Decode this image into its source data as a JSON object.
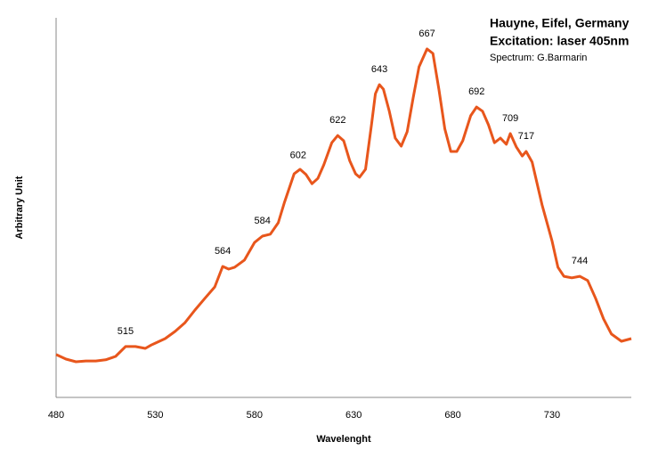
{
  "chart_data": {
    "type": "line",
    "title": "Hauyne, Eifel, Germany",
    "subtitle": "Excitation: laser 405nm",
    "credit": "Spectrum: G.Barmarin",
    "x_label": "Wavelenght",
    "y_label": "Arbitrary Unit",
    "xlim": [
      480,
      770
    ],
    "ylim": [
      0,
      100
    ],
    "xticks": [
      480,
      530,
      580,
      630,
      680,
      730
    ],
    "grid": false,
    "x": [
      480,
      485,
      490,
      495,
      500,
      505,
      510,
      515,
      520,
      525,
      528,
      530,
      535,
      540,
      545,
      550,
      555,
      560,
      564,
      567,
      570,
      575,
      580,
      584,
      588,
      592,
      595,
      600,
      603,
      606,
      609,
      612,
      615,
      619,
      622,
      625,
      628,
      631,
      633,
      636,
      639,
      641,
      643,
      645,
      648,
      651,
      654,
      657,
      660,
      663,
      667,
      670,
      673,
      676,
      679,
      682,
      685,
      689,
      692,
      695,
      698,
      701,
      704,
      707,
      709,
      712,
      715,
      717,
      720,
      725,
      730,
      733,
      736,
      740,
      744,
      748,
      752,
      756,
      760,
      765,
      770
    ],
    "series": [
      {
        "color": "#e8561c",
        "values": [
          11.3,
          10.1,
          9.4,
          9.6,
          9.6,
          9.9,
          10.8,
          13.4,
          13.4,
          12.9,
          13.8,
          14.3,
          15.5,
          17.4,
          19.7,
          23.0,
          26.1,
          29.1,
          34.5,
          33.8,
          34.3,
          36.2,
          40.8,
          42.5,
          43.0,
          46.0,
          51.2,
          58.9,
          60.1,
          58.7,
          56.3,
          57.7,
          61.3,
          67.1,
          69.0,
          67.6,
          62.4,
          58.9,
          58.0,
          60.1,
          71.8,
          80.0,
          82.4,
          81.2,
          75.4,
          68.3,
          66.2,
          70.0,
          78.9,
          87.1,
          91.8,
          90.6,
          81.2,
          70.7,
          64.8,
          64.8,
          67.6,
          74.2,
          76.5,
          75.4,
          71.8,
          67.1,
          68.3,
          66.7,
          69.5,
          66.0,
          63.6,
          64.8,
          62.0,
          50.7,
          41.3,
          34.3,
          31.9,
          31.5,
          31.9,
          30.8,
          26.1,
          20.7,
          16.7,
          14.8,
          15.5
        ]
      }
    ],
    "peaks": [
      515,
      564,
      584,
      602,
      622,
      643,
      667,
      692,
      709,
      717,
      744
    ]
  }
}
